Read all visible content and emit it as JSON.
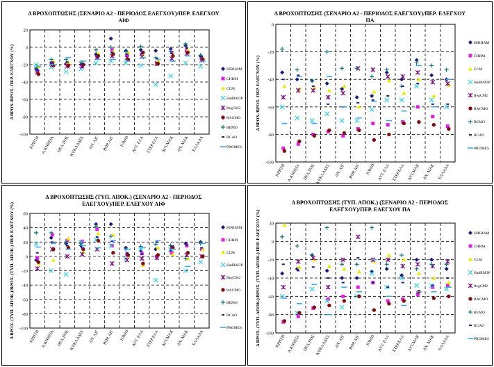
{
  "shared": {
    "categories": [
      "ΚΡΗΤΗ",
      "Α.ΚΝΗΣΙΑ",
      "ΠΕΛ.ΠΟΣ",
      "ΚΥΚΛΑΔΕΣ",
      "ΑΝ. ΑΙΓ",
      "ΒΟΡ. ΑΙΓ",
      "ΙΟΝΙΟ",
      "ΑΥΤ. ΕΛΛ",
      "ΣΤΕΡ.ΕΛΛ",
      "ΔΥΤ.ΜΑΚ",
      "ΑΝ. ΜΑΚ",
      "ΕΛΛΑΔΑ"
    ],
    "legend": [
      "HIRHAM",
      "CHRM",
      "CLM",
      "HadRM3P",
      "RegCM2",
      "RACMO",
      "REMO",
      "RCAO",
      "PROMES"
    ],
    "colors": {
      "HIRHAM": "#1a1a7a",
      "CHRM": "#e020e0",
      "CLM": "#e8e800",
      "HadRM3P": "#30d0e8",
      "RegCM2": "#801080",
      "RACMO": "#801010",
      "REMO": "#107880",
      "RCAO": "#202080",
      "PROMES": "#40a8e8"
    },
    "markers": {
      "HIRHAM": "diamond",
      "CHRM": "square",
      "CLM": "triangle",
      "HadRM3P": "x",
      "RegCM2": "star",
      "RACMO": "circle",
      "REMO": "plus",
      "RCAO": "dash",
      "PROMES": "line"
    }
  },
  "chart_data": [
    {
      "type": "scatter",
      "title": "Δ ΒΡΟΧΟΠΤΩΣΗΣ (ΣΕΝΑΡΙΟ Α2 - ΠΕΡΙΟΔΟΣ ΕΛΕΓΧΟΥ)/ΠΕΡ. ΕΛΕΓΧΟΥ\nΑΙΦ",
      "ylabel": "Δ ΒΡΟΧ./ΒΡΟΧ. ΠΕΡ. ΕΛΕΓΧΟΥ (%)",
      "ylim": [
        -100,
        20
      ],
      "yticks": [
        20,
        0,
        -20,
        -40,
        -60,
        -80,
        -100
      ],
      "show_legend": true,
      "series": [
        {
          "name": "HIRHAM",
          "values": [
            -25,
            -18,
            -19,
            -20,
            -8,
            10,
            -4,
            -3,
            -4,
            -2,
            2,
            -10
          ]
        },
        {
          "name": "CHRM",
          "values": [
            -28,
            -19,
            -20,
            -22,
            -11,
            -3,
            -9,
            -8,
            -18,
            -6,
            -4,
            -14
          ]
        },
        {
          "name": "CLM",
          "values": [
            -22,
            -16,
            -17,
            -19,
            -7,
            -5,
            -6,
            -9,
            -15,
            -8,
            -3,
            -12
          ]
        },
        {
          "name": "HadRM3P",
          "values": [
            -20,
            -23,
            -28,
            -25,
            -18,
            -16,
            -18,
            -21,
            -43,
            -33,
            -18,
            -22
          ]
        },
        {
          "name": "RegCM2",
          "values": [
            -29,
            -20,
            -22,
            -22,
            -12,
            -10,
            -12,
            -11,
            -19,
            -13,
            -7,
            -15
          ]
        },
        {
          "name": "RACMO",
          "values": [
            -31,
            -21,
            -21,
            -20,
            -10,
            -8,
            -14,
            -6,
            -19,
            -10,
            -6,
            -14
          ]
        },
        {
          "name": "REMO",
          "values": [
            -24,
            -14,
            -14,
            -17,
            -3,
            0,
            -5,
            1,
            -12,
            -5,
            4,
            -9
          ]
        },
        {
          "name": "RCAO",
          "values": [
            -26,
            -17,
            -17,
            -19,
            -9,
            -6,
            -8,
            -7,
            -13,
            -7,
            -1,
            -11
          ]
        },
        {
          "name": "PROMES",
          "values": [
            -22,
            -20,
            -12,
            -16,
            -14,
            -14,
            -16,
            -12,
            -14,
            -16,
            -10,
            -16
          ]
        }
      ]
    },
    {
      "type": "scatter",
      "title": "Δ ΒΡΟΧΟΠΤΩΣΗΣ (ΣΕΝΑΡΙΟ Α2 - ΠΕΡΙΟΔΟΣ ΕΛΕΓΧΟΥ)/ΠΕΡ. ΕΛΕΓΧΟΥ\nΠΑ",
      "ylabel": "Δ ΒΡΟΧ./ΒΡΟΧ. ΠΕΡ. ΕΛΕΓΧΟΥ (%)",
      "ylim": [
        -100,
        0
      ],
      "yticks": [
        0,
        -20,
        -40,
        -60,
        -80,
        -100
      ],
      "show_legend": true,
      "series": [
        {
          "name": "HIRHAM",
          "values": [
            -35,
            -40,
            -41,
            -43,
            -47,
            -53,
            -52,
            -35,
            -40,
            -26,
            -37,
            -40
          ]
        },
        {
          "name": "CHRM",
          "values": [
            -90,
            -87,
            -80,
            -78,
            -81,
            -76,
            -72,
            -73,
            -71,
            -60,
            -67,
            -74
          ]
        },
        {
          "name": "CLM",
          "values": [
            -45,
            -47,
            -46,
            -48,
            -45,
            -60,
            -49,
            -41,
            -50,
            -40,
            -52,
            -44
          ]
        },
        {
          "name": "HadRM3P",
          "values": [
            -60,
            -68,
            -70,
            -65,
            -70,
            -70,
            -62,
            -55,
            -55,
            -45,
            -55,
            -60
          ]
        },
        {
          "name": "RegCM2",
          "values": [
            -53,
            -48,
            -48,
            -53,
            -50,
            -32,
            -33,
            -38,
            -38,
            -35,
            -42,
            -43
          ]
        },
        {
          "name": "RACMO",
          "values": [
            -92,
            -85,
            -81,
            -77,
            -79,
            -77,
            -84,
            -80,
            -72,
            -71,
            -73,
            -76
          ]
        },
        {
          "name": "REMO",
          "values": [
            -18,
            -33,
            -41,
            -20,
            -32,
            -32,
            -38,
            -33,
            -45,
            -28,
            -30,
            -33
          ]
        },
        {
          "name": "RCAO",
          "values": [
            -40,
            -37,
            -45,
            -58,
            -60,
            -57,
            -55,
            -52,
            -45,
            -43,
            -58,
            -58
          ]
        },
        {
          "name": "PROMES",
          "values": [
            -72,
            -38,
            -72,
            -38,
            -60,
            -68,
            -56,
            -70,
            -63,
            -30,
            -60,
            -40
          ]
        }
      ]
    },
    {
      "type": "scatter",
      "title": "Δ ΒΡΟΧΟΠΤΩΣΗΣ (ΤΥΠ. ΑΠΟΚ.) (ΣΕΝΑΡΙΟ Α2 - ΠΕΡΙΟΔΟΣ\nΕΛΕΓΧΟΥ)/ΠΕΡ. ΕΛΕΓΧΟΥ ΑΙΦ",
      "ylabel": "Δ ΒΡΟΧ. (ΤΥΠ. ΑΠΟΚ.)/ΒΡΟΧ. (ΤΥΠ. ΑΠΟΚ.) ΠΕΡ. ΕΛΕΓΧΟΥ (%)",
      "ylim": [
        -100,
        60
      ],
      "yticks": [
        60,
        40,
        20,
        0,
        -20,
        -40,
        -60,
        -80,
        -100
      ],
      "show_legend": true,
      "series": [
        {
          "name": "HIRHAM",
          "values": [
            -5,
            26,
            18,
            15,
            45,
            45,
            12,
            8,
            10,
            8,
            18,
            20
          ]
        },
        {
          "name": "CHRM",
          "values": [
            -2,
            30,
            22,
            21,
            38,
            15,
            2,
            4,
            0,
            5,
            15,
            10
          ]
        },
        {
          "name": "CLM",
          "values": [
            -10,
            -5,
            25,
            6,
            32,
            30,
            0,
            -12,
            12,
            3,
            -3,
            10
          ]
        },
        {
          "name": "HadRM3P",
          "values": [
            17,
            -20,
            -25,
            20,
            23,
            15,
            -3,
            10,
            -33,
            10,
            -20,
            -8
          ]
        },
        {
          "name": "RegCM2",
          "values": [
            -17,
            10,
            0,
            3,
            10,
            -10,
            -5,
            -3,
            -2,
            13,
            2,
            0
          ]
        },
        {
          "name": "RACMO",
          "values": [
            -8,
            10,
            12,
            10,
            22,
            5,
            2,
            -10,
            2,
            12,
            5,
            0
          ]
        },
        {
          "name": "REMO",
          "values": [
            33,
            33,
            20,
            18,
            42,
            28,
            10,
            14,
            17,
            15,
            -3,
            18
          ]
        },
        {
          "name": "RCAO",
          "values": [
            5,
            20,
            15,
            12,
            27,
            21,
            5,
            3,
            20,
            14,
            16,
            12
          ]
        },
        {
          "name": "PROMES",
          "values": [
            13,
            18,
            10,
            15,
            12,
            22,
            10,
            12,
            22,
            10,
            -14,
            18
          ]
        }
      ]
    },
    {
      "type": "scatter",
      "title": "Δ ΒΡΟΧΟΠΤΩΣΗΣ (ΤΥΠ. ΑΠΟΚ.) (ΣΕΝΑΡΙΟ Α2 - ΠΕΡΙΟΔΟΣ\nΕΛΕΓΧΟΥ)/ΠΕΡ. ΕΛΕΓΧΟΥ ΠΑ",
      "ylabel": "Δ ΒΡΟΧ. (ΤΥΠ. ΑΠΟΚ.)/ΒΡΟΧ. (ΤΥΠ. ΑΠΟΚ.) ΠΕΡ. ΕΛΕΓΧΟΥ (%)",
      "ylim": [
        -100,
        20
      ],
      "yticks": [
        20,
        0,
        -20,
        -40,
        -60,
        -80,
        -100
      ],
      "show_legend": true,
      "series": [
        {
          "name": "HIRHAM",
          "values": [
            -35,
            -30,
            -15,
            -32,
            -40,
            -40,
            -33,
            -30,
            -37,
            -20,
            -20,
            -30
          ]
        },
        {
          "name": "CHRM",
          "values": [
            -88,
            -82,
            -73,
            -63,
            -60,
            -50,
            -45,
            -65,
            -63,
            -58,
            -50,
            -48
          ]
        },
        {
          "name": "CLM",
          "values": [
            18,
            -28,
            -20,
            -27,
            -30,
            -33,
            -22,
            -15,
            -20,
            -35,
            -40,
            -45
          ]
        },
        {
          "name": "HadRM3P",
          "values": [
            -60,
            -78,
            -52,
            -65,
            -72,
            -60,
            -35,
            -50,
            -40,
            -48,
            -48,
            -52
          ]
        },
        {
          "name": "RegCM2",
          "values": [
            -50,
            -22,
            -18,
            -50,
            -20,
            5,
            -20,
            -20,
            -27,
            -25,
            -27,
            -22
          ]
        },
        {
          "name": "RACMO",
          "values": [
            -87,
            -78,
            -72,
            -70,
            -65,
            -60,
            -75,
            -68,
            -65,
            -55,
            -62,
            -60
          ]
        },
        {
          "name": "REMO",
          "values": [
            5,
            -5,
            -15,
            15,
            -25,
            -25,
            15,
            -25,
            -15,
            -30,
            -25,
            -25
          ]
        },
        {
          "name": "RCAO",
          "values": [
            -25,
            -32,
            -28,
            -40,
            -45,
            -18,
            -45,
            -50,
            -45,
            -55,
            -48,
            -40
          ]
        },
        {
          "name": "PROMES",
          "values": [
            -62,
            -68,
            -47,
            -80,
            -50,
            -55,
            -20,
            -60,
            -70,
            -55,
            -55,
            -50
          ]
        }
      ]
    }
  ]
}
